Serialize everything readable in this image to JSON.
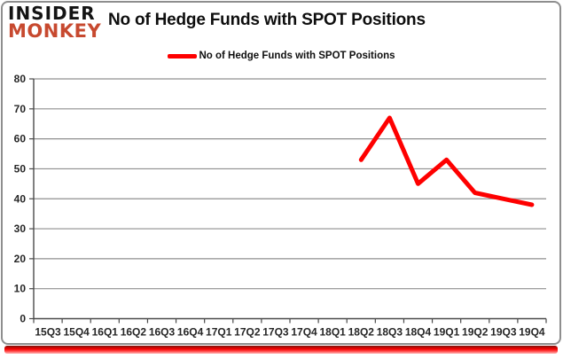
{
  "brand": {
    "line1": "INSIDER",
    "line2": "MONKEY",
    "monkey_color": "#c7492f",
    "insider_color": "#141414"
  },
  "title": "No of Hedge Funds with SPOT Positions",
  "legend": {
    "label": "No of Hedge Funds with SPOT Positions",
    "marker_color": "#fe0000"
  },
  "accent_bar_color": "#f40000",
  "chart_data": {
    "type": "line",
    "title": "No of Hedge Funds with SPOT Positions",
    "categories": [
      "15Q3",
      "15Q4",
      "16Q1",
      "16Q2",
      "16Q3",
      "16Q4",
      "17Q1",
      "17Q2",
      "17Q3",
      "17Q4",
      "18Q1",
      "18Q2",
      "18Q3",
      "18Q4",
      "19Q1",
      "19Q2",
      "19Q3",
      "19Q4"
    ],
    "series": [
      {
        "name": "No of Hedge Funds with SPOT Positions",
        "color": "#fe0000",
        "values": [
          null,
          null,
          null,
          null,
          null,
          null,
          null,
          null,
          null,
          null,
          null,
          53,
          67,
          45,
          53,
          42,
          40,
          38
        ]
      }
    ],
    "xlabel": "",
    "ylabel": "",
    "ylim": [
      0,
      80
    ],
    "yticks": [
      0,
      10,
      20,
      30,
      40,
      50,
      60,
      70,
      80
    ],
    "grid": "horizontal",
    "gridline_color": "#8f8f8f",
    "axis_color": "#4a4a4a",
    "tick_label_color": "#262626",
    "legend_position": "top"
  }
}
